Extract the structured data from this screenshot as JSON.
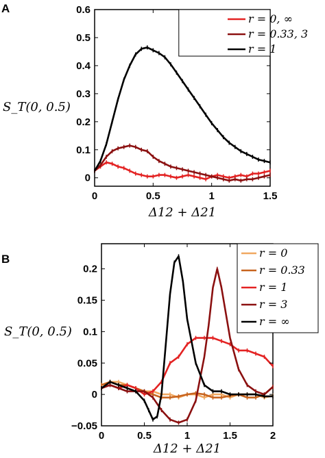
{
  "chart_data": [
    {
      "panel": "A",
      "type": "line",
      "xlabel": "Δ12 + Δ21",
      "ylabel": "S_T(0, 0.5)",
      "xlim": [
        0,
        1.5
      ],
      "ylim": [
        -0.03,
        0.6
      ],
      "xticks": [
        0,
        0.5,
        1,
        1.5
      ],
      "xtick_labels": [
        "0",
        "0.5",
        "1",
        "1.5"
      ],
      "yticks": [
        0,
        0.1,
        0.2,
        0.3,
        0.4,
        0.5,
        0.6
      ],
      "ytick_labels": [
        "0",
        "0.1",
        "0.2",
        "0.3",
        "0.4",
        "0.5",
        "0.6"
      ],
      "grid": false,
      "legend": "top-right",
      "series": [
        {
          "name": "r = 0, ∞",
          "color": "#e32222",
          "x": [
            0,
            0.05,
            0.1,
            0.15,
            0.2,
            0.25,
            0.3,
            0.35,
            0.4,
            0.45,
            0.5,
            0.55,
            0.6,
            0.65,
            0.7,
            0.75,
            0.8,
            0.85,
            0.9,
            0.95,
            1.0,
            1.05,
            1.1,
            1.15,
            1.2,
            1.25,
            1.3,
            1.35,
            1.4,
            1.45,
            1.5
          ],
          "y": [
            0.025,
            0.04,
            0.055,
            0.05,
            0.04,
            0.035,
            0.025,
            0.015,
            0.01,
            0.005,
            0.005,
            0.01,
            0.01,
            0.005,
            0.0,
            0.005,
            0.01,
            0.005,
            0.0,
            -0.005,
            0.005,
            0.01,
            0.005,
            0.0,
            0.005,
            0.01,
            0.005,
            0.015,
            0.015,
            0.02,
            0.025
          ]
        },
        {
          "name": "r = 0.33, 3",
          "color": "#8b1010",
          "x": [
            0,
            0.05,
            0.1,
            0.15,
            0.2,
            0.25,
            0.3,
            0.35,
            0.4,
            0.45,
            0.5,
            0.55,
            0.6,
            0.65,
            0.7,
            0.75,
            0.8,
            0.85,
            0.9,
            0.95,
            1.0,
            1.05,
            1.1,
            1.15,
            1.2,
            1.25,
            1.3,
            1.35,
            1.4,
            1.45,
            1.5
          ],
          "y": [
            0.025,
            0.045,
            0.075,
            0.095,
            0.105,
            0.11,
            0.115,
            0.11,
            0.1,
            0.095,
            0.075,
            0.06,
            0.05,
            0.04,
            0.035,
            0.03,
            0.025,
            0.02,
            0.015,
            0.01,
            0.005,
            0.0,
            -0.005,
            -0.01,
            -0.005,
            -0.01,
            -0.005,
            -0.005,
            0.0,
            0.005,
            0.01
          ]
        },
        {
          "name": "r = 1",
          "color": "#000000",
          "x": [
            0,
            0.05,
            0.1,
            0.15,
            0.2,
            0.25,
            0.3,
            0.35,
            0.4,
            0.45,
            0.5,
            0.55,
            0.6,
            0.65,
            0.7,
            0.75,
            0.8,
            0.85,
            0.9,
            0.95,
            1.0,
            1.05,
            1.1,
            1.15,
            1.2,
            1.25,
            1.3,
            1.35,
            1.4,
            1.45,
            1.5
          ],
          "y": [
            0.025,
            0.06,
            0.12,
            0.2,
            0.28,
            0.35,
            0.4,
            0.44,
            0.46,
            0.465,
            0.455,
            0.445,
            0.43,
            0.405,
            0.375,
            0.345,
            0.315,
            0.285,
            0.255,
            0.225,
            0.195,
            0.17,
            0.145,
            0.125,
            0.11,
            0.095,
            0.085,
            0.075,
            0.065,
            0.06,
            0.055
          ]
        }
      ]
    },
    {
      "panel": "B",
      "type": "line",
      "xlabel": "Δ12 + Δ21",
      "ylabel": "S_T(0, 0.5)",
      "xlim": [
        0,
        2
      ],
      "ylim": [
        -0.05,
        0.24
      ],
      "xticks": [
        0,
        0.5,
        1,
        1.5,
        2
      ],
      "xtick_labels": [
        "0",
        "0.5",
        "1",
        "1.5",
        "2"
      ],
      "yticks": [
        -0.05,
        0,
        0.05,
        0.1,
        0.15,
        0.2
      ],
      "ytick_labels": [
        "−0.05",
        "0",
        "0.05",
        "0.1",
        "0.15",
        "0.2"
      ],
      "grid": false,
      "legend": "top-right",
      "series": [
        {
          "name": "r = 0",
          "color": "#f0a860",
          "x": [
            0,
            0.1,
            0.2,
            0.3,
            0.4,
            0.5,
            0.6,
            0.7,
            0.8,
            0.9,
            1.0,
            1.1,
            1.2,
            1.3,
            1.4,
            1.5,
            1.6,
            1.7,
            1.8,
            1.9,
            2.0
          ],
          "y": [
            0.015,
            0.02,
            0.02,
            0.015,
            0.01,
            0.005,
            0.005,
            0.0,
            0.0,
            -0.005,
            0.0,
            0.0,
            -0.005,
            0.0,
            0.0,
            -0.005,
            0.0,
            0.0,
            0.0,
            -0.005,
            -0.002
          ]
        },
        {
          "name": "r = 0.33",
          "color": "#c8641e",
          "x": [
            0,
            0.1,
            0.2,
            0.3,
            0.4,
            0.5,
            0.6,
            0.7,
            0.8,
            0.9,
            1.0,
            1.1,
            1.2,
            1.3,
            1.4,
            1.5,
            1.6,
            1.7,
            1.8,
            1.9,
            2.0
          ],
          "y": [
            0.015,
            0.02,
            0.015,
            0.015,
            0.01,
            0.005,
            0.0,
            -0.005,
            -0.005,
            -0.003,
            0.0,
            0.002,
            0.0,
            -0.005,
            -0.005,
            -0.002,
            0.0,
            -0.005,
            -0.005,
            0.0,
            0.012
          ]
        },
        {
          "name": "r = 1",
          "color": "#e32222",
          "x": [
            0,
            0.1,
            0.2,
            0.3,
            0.4,
            0.5,
            0.6,
            0.7,
            0.8,
            0.9,
            1.0,
            1.1,
            1.2,
            1.3,
            1.4,
            1.5,
            1.6,
            1.7,
            1.8,
            1.9,
            2.0
          ],
          "y": [
            0.01,
            0.015,
            0.01,
            0.015,
            0.01,
            0.0,
            0.005,
            0.02,
            0.05,
            0.06,
            0.08,
            0.09,
            0.09,
            0.09,
            0.085,
            0.08,
            0.07,
            0.07,
            0.065,
            0.06,
            0.045
          ]
        },
        {
          "name": "r = 3",
          "color": "#8b1010",
          "x": [
            0,
            0.1,
            0.2,
            0.3,
            0.4,
            0.5,
            0.6,
            0.7,
            0.8,
            0.9,
            1.0,
            1.1,
            1.2,
            1.25,
            1.3,
            1.35,
            1.4,
            1.5,
            1.6,
            1.7,
            1.8,
            1.9,
            2.0
          ],
          "y": [
            0.01,
            0.015,
            0.01,
            0.005,
            0.005,
            0.005,
            -0.005,
            -0.025,
            -0.04,
            -0.045,
            -0.04,
            -0.01,
            0.06,
            0.11,
            0.17,
            0.2,
            0.17,
            0.09,
            0.04,
            0.015,
            0.005,
            0.0,
            0.012
          ]
        },
        {
          "name": "r = ∞",
          "color": "#000000",
          "x": [
            0,
            0.1,
            0.2,
            0.3,
            0.4,
            0.5,
            0.55,
            0.6,
            0.65,
            0.7,
            0.75,
            0.8,
            0.85,
            0.9,
            0.95,
            1.0,
            1.1,
            1.2,
            1.3,
            1.4,
            1.5,
            1.6,
            1.7,
            1.8,
            1.9,
            2.0
          ],
          "y": [
            0.01,
            0.02,
            0.015,
            0.01,
            0.005,
            -0.01,
            -0.025,
            -0.04,
            -0.035,
            0.0,
            0.08,
            0.16,
            0.21,
            0.22,
            0.18,
            0.12,
            0.05,
            0.015,
            0.005,
            0.005,
            0.0,
            0.0,
            0.0,
            0.0,
            -0.003,
            -0.003
          ]
        }
      ]
    }
  ]
}
